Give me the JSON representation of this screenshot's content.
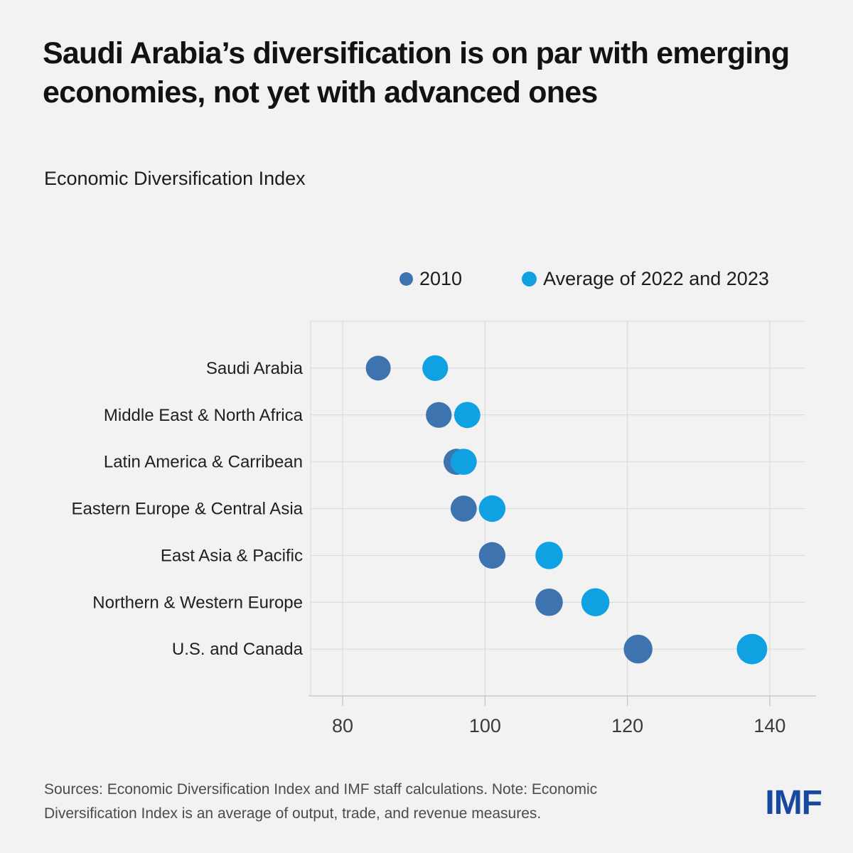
{
  "chart_data": {
    "type": "scatter",
    "variant": "horizontal-dot-plot",
    "title": "Saudi Arabia’s diversification is on par with emerging economies, not yet with advanced ones",
    "subtitle": "Economic Diversification Index",
    "categories": [
      "Saudi Arabia",
      "Middle East & North Africa",
      "Latin America & Carribean",
      "Eastern Europe & Central Asia",
      "East Asia & Pacific",
      "Northern & Western Europe",
      "U.S. and Canada"
    ],
    "series": [
      {
        "name": "2010",
        "color": "#3d74b0",
        "values": [
          85,
          93.5,
          96,
          97,
          101,
          109,
          121.5
        ]
      },
      {
        "name": "Average of 2022 and 2023",
        "color": "#10a1e2",
        "values": [
          93,
          97.5,
          97,
          101,
          109,
          115.5,
          137.5
        ]
      }
    ],
    "x_ticks": [
      80,
      100,
      120,
      140
    ],
    "xlim": [
      75.5,
      145
    ],
    "grid": "both",
    "legend_position": "top",
    "colors": {
      "background": "#f2f2f3",
      "gridline": "#d8d8da",
      "axis_line": "#c9c9cb",
      "tick_label": "#3b3b3d",
      "category_label": "#202022",
      "title": "#121212",
      "note": "#4b4b4d",
      "logo": "#174a9f"
    }
  },
  "footer": {
    "note": "Sources: Economic Diversification Index and IMF staff calculations. Note: Economic Diversification Index is an average of output, trade, and revenue measures.",
    "logo": "IMF"
  }
}
